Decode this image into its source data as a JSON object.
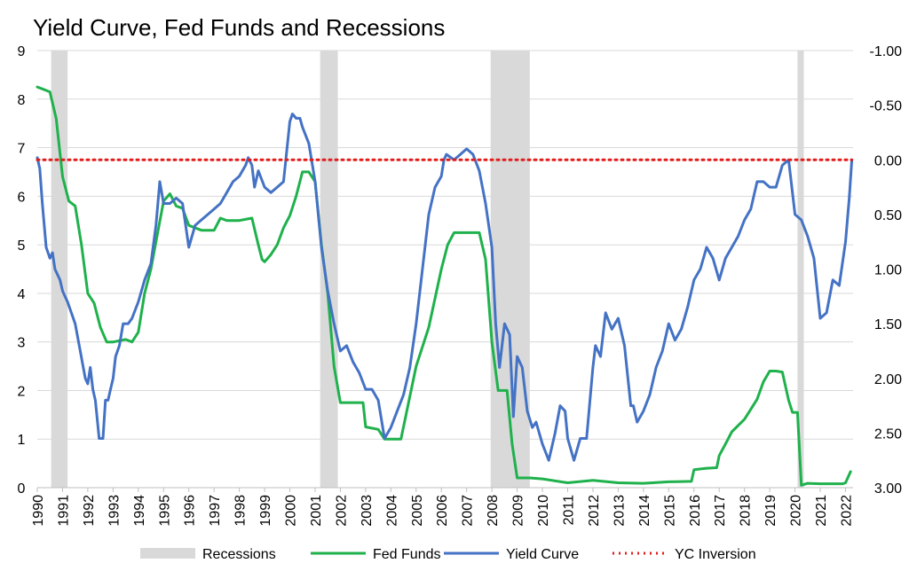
{
  "chart_data": {
    "type": "line",
    "title": "Yield Curve, Fed Funds and Recessions",
    "x_range": [
      1990,
      2022.3
    ],
    "x_ticks": [
      "1990",
      "1991",
      "1992",
      "1993",
      "1994",
      "1995",
      "1996",
      "1997",
      "1998",
      "1999",
      "2000",
      "2001",
      "2002",
      "2003",
      "2004",
      "2005",
      "2006",
      "2007",
      "2008",
      "2009",
      "2010",
      "2011",
      "2012",
      "2013",
      "2014",
      "2015",
      "2016",
      "2017",
      "2018",
      "2019",
      "2020",
      "2021",
      "2022"
    ],
    "y_left": {
      "range": [
        0,
        9
      ],
      "ticks": [
        "0",
        "1",
        "2",
        "3",
        "4",
        "5",
        "6",
        "7",
        "8",
        "9"
      ]
    },
    "y_right": {
      "range": [
        -1.0,
        3.0
      ],
      "inverted": true,
      "ticks": [
        "-1.00",
        "-0.50",
        "0.00",
        "0.50",
        "1.00",
        "1.50",
        "2.00",
        "2.50",
        "3.00"
      ]
    },
    "grid": true,
    "legend_position": "bottom",
    "colors": {
      "recessions": "#d9d9d9",
      "fed_funds": "#1fb14c",
      "yield_curve": "#4472c4",
      "yc_inversion": "#e31b1b"
    },
    "recessions": [
      [
        1990.55,
        1991.2
      ],
      [
        2001.2,
        2001.9
      ],
      [
        2007.95,
        2009.5
      ],
      [
        2020.1,
        2020.35
      ]
    ],
    "series": [
      {
        "name": "Fed Funds",
        "axis": "left",
        "points": [
          [
            1990,
            8.25
          ],
          [
            1990.25,
            8.2
          ],
          [
            1990.5,
            8.15
          ],
          [
            1990.75,
            7.6
          ],
          [
            1991,
            6.4
          ],
          [
            1991.25,
            5.9
          ],
          [
            1991.5,
            5.8
          ],
          [
            1991.75,
            5.0
          ],
          [
            1992,
            4.0
          ],
          [
            1992.25,
            3.8
          ],
          [
            1992.5,
            3.3
          ],
          [
            1992.75,
            3.0
          ],
          [
            1993,
            3.0
          ],
          [
            1993.5,
            3.05
          ],
          [
            1993.75,
            3.0
          ],
          [
            1994,
            3.2
          ],
          [
            1994.25,
            4.0
          ],
          [
            1994.5,
            4.5
          ],
          [
            1994.75,
            5.2
          ],
          [
            1995,
            5.9
          ],
          [
            1995.25,
            6.05
          ],
          [
            1995.5,
            5.8
          ],
          [
            1995.75,
            5.75
          ],
          [
            1996,
            5.4
          ],
          [
            1996.5,
            5.3
          ],
          [
            1997,
            5.3
          ],
          [
            1997.25,
            5.55
          ],
          [
            1997.5,
            5.5
          ],
          [
            1998,
            5.5
          ],
          [
            1998.5,
            5.55
          ],
          [
            1998.75,
            5.0
          ],
          [
            1998.9,
            4.7
          ],
          [
            1999,
            4.65
          ],
          [
            1999.25,
            4.8
          ],
          [
            1999.5,
            5.0
          ],
          [
            1999.75,
            5.35
          ],
          [
            2000,
            5.6
          ],
          [
            2000.25,
            6.0
          ],
          [
            2000.5,
            6.5
          ],
          [
            2000.75,
            6.5
          ],
          [
            2001,
            6.3
          ],
          [
            2001.25,
            5.0
          ],
          [
            2001.5,
            4.0
          ],
          [
            2001.75,
            2.5
          ],
          [
            2002,
            1.75
          ],
          [
            2002.5,
            1.75
          ],
          [
            2002.9,
            1.75
          ],
          [
            2003,
            1.25
          ],
          [
            2003.5,
            1.2
          ],
          [
            2003.75,
            1.0
          ],
          [
            2004,
            1.0
          ],
          [
            2004.4,
            1.0
          ],
          [
            2004.6,
            1.5
          ],
          [
            2005,
            2.5
          ],
          [
            2005.5,
            3.3
          ],
          [
            2006,
            4.5
          ],
          [
            2006.25,
            5.0
          ],
          [
            2006.5,
            5.25
          ],
          [
            2007,
            5.25
          ],
          [
            2007.5,
            5.25
          ],
          [
            2007.75,
            4.7
          ],
          [
            2008,
            3.0
          ],
          [
            2008.25,
            2.0
          ],
          [
            2008.6,
            2.0
          ],
          [
            2008.8,
            0.9
          ],
          [
            2009,
            0.2
          ],
          [
            2009.5,
            0.2
          ],
          [
            2010,
            0.18
          ],
          [
            2011,
            0.1
          ],
          [
            2012,
            0.15
          ],
          [
            2013,
            0.1
          ],
          [
            2014,
            0.09
          ],
          [
            2015,
            0.12
          ],
          [
            2015.9,
            0.13
          ],
          [
            2016,
            0.37
          ],
          [
            2016.5,
            0.4
          ],
          [
            2016.9,
            0.41
          ],
          [
            2017,
            0.66
          ],
          [
            2017.25,
            0.9
          ],
          [
            2017.5,
            1.15
          ],
          [
            2018,
            1.41
          ],
          [
            2018.5,
            1.82
          ],
          [
            2018.75,
            2.18
          ],
          [
            2019,
            2.4
          ],
          [
            2019.25,
            2.4
          ],
          [
            2019.5,
            2.38
          ],
          [
            2019.75,
            1.8
          ],
          [
            2019.9,
            1.55
          ],
          [
            2020.1,
            1.55
          ],
          [
            2020.25,
            0.05
          ],
          [
            2020.5,
            0.09
          ],
          [
            2021,
            0.08
          ],
          [
            2021.5,
            0.08
          ],
          [
            2021.9,
            0.08
          ],
          [
            2022,
            0.1
          ],
          [
            2022.2,
            0.33
          ]
        ]
      },
      {
        "name": "Yield Curve",
        "axis": "right",
        "points": [
          [
            1990,
            -0.02
          ],
          [
            1990.1,
            0.08
          ],
          [
            1990.2,
            0.4
          ],
          [
            1990.35,
            0.8
          ],
          [
            1990.5,
            0.9
          ],
          [
            1990.6,
            0.85
          ],
          [
            1990.7,
            1.0
          ],
          [
            1990.9,
            1.1
          ],
          [
            1991,
            1.2
          ],
          [
            1991.2,
            1.3
          ],
          [
            1991.5,
            1.5
          ],
          [
            1991.7,
            1.75
          ],
          [
            1991.9,
            2.0
          ],
          [
            1992,
            2.05
          ],
          [
            1992.1,
            1.9
          ],
          [
            1992.2,
            2.1
          ],
          [
            1992.3,
            2.2
          ],
          [
            1992.45,
            2.55
          ],
          [
            1992.6,
            2.55
          ],
          [
            1992.7,
            2.2
          ],
          [
            1992.8,
            2.2
          ],
          [
            1992.9,
            2.1
          ],
          [
            1993,
            2.0
          ],
          [
            1993.1,
            1.8
          ],
          [
            1993.25,
            1.7
          ],
          [
            1993.4,
            1.5
          ],
          [
            1993.6,
            1.5
          ],
          [
            1993.75,
            1.45
          ],
          [
            1994,
            1.3
          ],
          [
            1994.25,
            1.1
          ],
          [
            1994.5,
            0.95
          ],
          [
            1994.7,
            0.6
          ],
          [
            1994.85,
            0.2
          ],
          [
            1995,
            0.4
          ],
          [
            1995.25,
            0.4
          ],
          [
            1995.5,
            0.35
          ],
          [
            1995.75,
            0.4
          ],
          [
            1996,
            0.8
          ],
          [
            1996.25,
            0.6
          ],
          [
            1996.5,
            0.55
          ],
          [
            1996.75,
            0.5
          ],
          [
            1997,
            0.45
          ],
          [
            1997.25,
            0.4
          ],
          [
            1997.5,
            0.3
          ],
          [
            1997.75,
            0.2
          ],
          [
            1998,
            0.15
          ],
          [
            1998.25,
            0.05
          ],
          [
            1998.35,
            -0.02
          ],
          [
            1998.5,
            0.05
          ],
          [
            1998.6,
            0.25
          ],
          [
            1998.75,
            0.1
          ],
          [
            1999,
            0.25
          ],
          [
            1999.25,
            0.3
          ],
          [
            1999.5,
            0.25
          ],
          [
            1999.75,
            0.2
          ],
          [
            2000,
            -0.35
          ],
          [
            2000.1,
            -0.42
          ],
          [
            2000.25,
            -0.38
          ],
          [
            2000.4,
            -0.38
          ],
          [
            2000.5,
            -0.3
          ],
          [
            2000.75,
            -0.15
          ],
          [
            2001,
            0.2
          ],
          [
            2001.25,
            0.8
          ],
          [
            2001.5,
            1.2
          ],
          [
            2001.75,
            1.5
          ],
          [
            2002,
            1.75
          ],
          [
            2002.25,
            1.7
          ],
          [
            2002.5,
            1.85
          ],
          [
            2002.75,
            1.95
          ],
          [
            2003,
            2.1
          ],
          [
            2003.25,
            2.1
          ],
          [
            2003.5,
            2.2
          ],
          [
            2003.75,
            2.55
          ],
          [
            2004,
            2.45
          ],
          [
            2004.25,
            2.3
          ],
          [
            2004.5,
            2.15
          ],
          [
            2004.75,
            1.9
          ],
          [
            2005,
            1.5
          ],
          [
            2005.25,
            1.0
          ],
          [
            2005.5,
            0.5
          ],
          [
            2005.75,
            0.25
          ],
          [
            2006,
            0.15
          ],
          [
            2006.1,
            0.0
          ],
          [
            2006.2,
            -0.05
          ],
          [
            2006.5,
            0.0
          ],
          [
            2006.75,
            -0.05
          ],
          [
            2007,
            -0.1
          ],
          [
            2007.25,
            -0.05
          ],
          [
            2007.5,
            0.1
          ],
          [
            2007.75,
            0.4
          ],
          [
            2008,
            0.8
          ],
          [
            2008.15,
            1.5
          ],
          [
            2008.3,
            1.9
          ],
          [
            2008.5,
            1.5
          ],
          [
            2008.7,
            1.6
          ],
          [
            2008.85,
            2.35
          ],
          [
            2009,
            1.8
          ],
          [
            2009.2,
            1.9
          ],
          [
            2009.4,
            2.3
          ],
          [
            2009.6,
            2.45
          ],
          [
            2009.75,
            2.4
          ],
          [
            2010,
            2.6
          ],
          [
            2010.25,
            2.75
          ],
          [
            2010.5,
            2.5
          ],
          [
            2010.7,
            2.25
          ],
          [
            2010.9,
            2.3
          ],
          [
            2011,
            2.55
          ],
          [
            2011.25,
            2.75
          ],
          [
            2011.5,
            2.55
          ],
          [
            2011.75,
            2.55
          ],
          [
            2012,
            1.9
          ],
          [
            2012.1,
            1.7
          ],
          [
            2012.3,
            1.8
          ],
          [
            2012.5,
            1.4
          ],
          [
            2012.75,
            1.55
          ],
          [
            2013,
            1.45
          ],
          [
            2013.25,
            1.7
          ],
          [
            2013.5,
            2.25
          ],
          [
            2013.6,
            2.25
          ],
          [
            2013.75,
            2.4
          ],
          [
            2014,
            2.3
          ],
          [
            2014.25,
            2.15
          ],
          [
            2014.5,
            1.9
          ],
          [
            2014.75,
            1.75
          ],
          [
            2015,
            1.5
          ],
          [
            2015.25,
            1.65
          ],
          [
            2015.5,
            1.55
          ],
          [
            2015.75,
            1.35
          ],
          [
            2016,
            1.1
          ],
          [
            2016.25,
            1.0
          ],
          [
            2016.5,
            0.8
          ],
          [
            2016.75,
            0.9
          ],
          [
            2017,
            1.1
          ],
          [
            2017.25,
            0.9
          ],
          [
            2017.5,
            0.8
          ],
          [
            2017.75,
            0.7
          ],
          [
            2018,
            0.55
          ],
          [
            2018.25,
            0.45
          ],
          [
            2018.5,
            0.2
          ],
          [
            2018.75,
            0.2
          ],
          [
            2019,
            0.25
          ],
          [
            2019.25,
            0.25
          ],
          [
            2019.5,
            0.05
          ],
          [
            2019.75,
            0.0
          ],
          [
            2020,
            0.5
          ],
          [
            2020.25,
            0.55
          ],
          [
            2020.5,
            0.7
          ],
          [
            2020.75,
            0.9
          ],
          [
            2021,
            1.45
          ],
          [
            2021.25,
            1.4
          ],
          [
            2021.5,
            1.1
          ],
          [
            2021.75,
            1.15
          ],
          [
            2022,
            0.75
          ],
          [
            2022.15,
            0.35
          ],
          [
            2022.25,
            0.0
          ]
        ]
      },
      {
        "name": "YC Inversion",
        "axis": "right",
        "points": [
          [
            1990,
            0.0
          ],
          [
            2022.25,
            0.0
          ]
        ]
      }
    ],
    "legend": [
      {
        "label": "Recessions",
        "kind": "area",
        "color": "#d9d9d9"
      },
      {
        "label": "Fed Funds",
        "kind": "line",
        "color": "#1fb14c"
      },
      {
        "label": "Yield Curve",
        "kind": "line",
        "color": "#4472c4"
      },
      {
        "label": "YC Inversion",
        "kind": "dotted",
        "color": "#e31b1b"
      }
    ]
  }
}
